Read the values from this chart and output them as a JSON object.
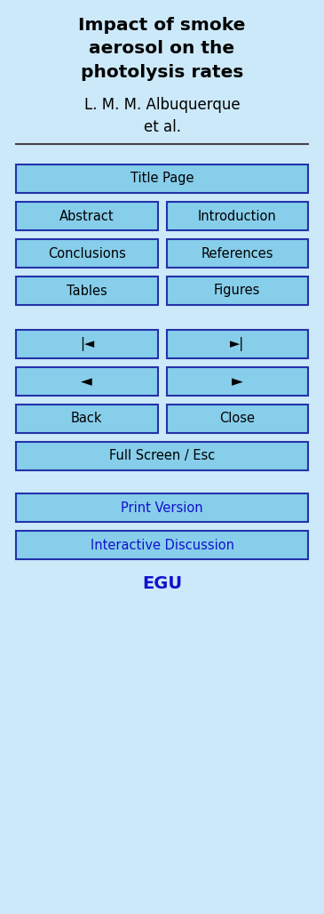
{
  "bg_color": "#cce9f9",
  "title_line1": "Impact of smoke",
  "title_line2": "aerosol on the",
  "title_line3": "photolysis rates",
  "author_line1": "L. M. M. Albuquerque",
  "author_line2": "et al.",
  "title_color": "#000000",
  "author_color": "#000000",
  "divider_color": "#444444",
  "button_bg": "#87ceeb",
  "button_border": "#2233aa",
  "button_text_color": "#000000",
  "button_text_color_blue": "#1111cc",
  "footer_text": "EGU",
  "footer_color": "#1111cc",
  "fig_w": 3.65,
  "fig_h": 10.28,
  "dpi": 100
}
